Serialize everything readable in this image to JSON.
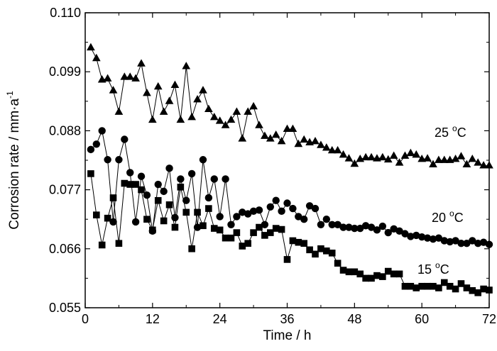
{
  "chart_data": {
    "type": "line",
    "title": "",
    "xlabel": "Time / h",
    "ylabel": "Corrosion rate / mm·a",
    "ylabel_sup": "-1",
    "xlim": [
      0,
      72
    ],
    "ylim": [
      0.055,
      0.11
    ],
    "xticks": [
      0,
      12,
      24,
      36,
      48,
      60,
      72
    ],
    "xtick_labels": [
      "0",
      "12",
      "24",
      "36",
      "48",
      "60",
      "72"
    ],
    "yticks": [
      0.055,
      0.066,
      0.077,
      0.088,
      0.099,
      0.11
    ],
    "ytick_labels": [
      "0.055",
      "0.066",
      "0.077",
      "0.088",
      "0.099",
      "0.110"
    ],
    "grid": false,
    "legend": "none",
    "series": [
      {
        "name": "25 °C",
        "label_main": "25 ",
        "label_sup": "o",
        "label_unit": "C",
        "marker": "triangle",
        "x": [
          1,
          2,
          3,
          4,
          5,
          6,
          7,
          8,
          9,
          10,
          11,
          12,
          13,
          14,
          15,
          16,
          17,
          18,
          19,
          20,
          21,
          22,
          23,
          24,
          25,
          26,
          27,
          28,
          29,
          30,
          31,
          32,
          33,
          34,
          35,
          36,
          37,
          38,
          39,
          40,
          41,
          42,
          43,
          44,
          45,
          46,
          47,
          48,
          49,
          50,
          51,
          52,
          53,
          54,
          55,
          56,
          57,
          58,
          59,
          60,
          61,
          62,
          63,
          64,
          65,
          66,
          67,
          68,
          69,
          70,
          71,
          72
        ],
        "y": [
          0.1035,
          0.1015,
          0.0975,
          0.0977,
          0.0955,
          0.0915,
          0.098,
          0.098,
          0.0977,
          0.1005,
          0.095,
          0.09,
          0.0962,
          0.0915,
          0.0935,
          0.0965,
          0.09,
          0.1,
          0.0905,
          0.0938,
          0.0955,
          0.092,
          0.0905,
          0.0898,
          0.089,
          0.09,
          0.0915,
          0.0865,
          0.0915,
          0.0925,
          0.089,
          0.087,
          0.0865,
          0.0872,
          0.086,
          0.0883,
          0.0883,
          0.0855,
          0.0863,
          0.0858,
          0.086,
          0.0853,
          0.0848,
          0.0843,
          0.0843,
          0.0835,
          0.0828,
          0.0818,
          0.0827,
          0.083,
          0.083,
          0.0828,
          0.083,
          0.0826,
          0.0833,
          0.082,
          0.0833,
          0.0838,
          0.0835,
          0.0827,
          0.0828,
          0.0817,
          0.0825,
          0.0825,
          0.0825,
          0.0827,
          0.0832,
          0.0817,
          0.0827,
          0.082,
          0.0815,
          0.0815
        ]
      },
      {
        "name": "20 °C",
        "label_main": "20 ",
        "label_sup": "o",
        "label_unit": "C",
        "marker": "circle",
        "x": [
          1,
          2,
          3,
          4,
          5,
          6,
          7,
          8,
          9,
          10,
          11,
          12,
          13,
          14,
          15,
          16,
          17,
          18,
          19,
          20,
          21,
          22,
          23,
          24,
          25,
          26,
          27,
          28,
          29,
          30,
          31,
          32,
          33,
          34,
          35,
          36,
          37,
          38,
          39,
          40,
          41,
          42,
          43,
          44,
          45,
          46,
          47,
          48,
          49,
          50,
          51,
          52,
          53,
          54,
          55,
          56,
          57,
          58,
          59,
          60,
          61,
          62,
          63,
          64,
          65,
          66,
          67,
          68,
          69,
          70,
          71,
          72
        ],
        "y": [
          0.0845,
          0.0855,
          0.088,
          0.0826,
          0.071,
          0.0826,
          0.0864,
          0.0802,
          0.071,
          0.0795,
          0.076,
          0.0693,
          0.078,
          0.0767,
          0.081,
          0.0718,
          0.079,
          0.075,
          0.08,
          0.07,
          0.0826,
          0.0755,
          0.079,
          0.072,
          0.079,
          0.0705,
          0.072,
          0.0728,
          0.0725,
          0.073,
          0.0732,
          0.0705,
          0.0738,
          0.075,
          0.073,
          0.0745,
          0.0735,
          0.072,
          0.0715,
          0.074,
          0.0735,
          0.0705,
          0.0715,
          0.0705,
          0.0705,
          0.07,
          0.07,
          0.0698,
          0.0698,
          0.0703,
          0.07,
          0.0695,
          0.0702,
          0.069,
          0.0697,
          0.0693,
          0.0688,
          0.0683,
          0.0685,
          0.0682,
          0.068,
          0.0678,
          0.068,
          0.0675,
          0.0673,
          0.0675,
          0.067,
          0.067,
          0.0675,
          0.067,
          0.0672,
          0.0668
        ]
      },
      {
        "name": "15 °C",
        "label_main": "15 ",
        "label_sup": "o",
        "label_unit": "C",
        "marker": "square",
        "x": [
          1,
          2,
          3,
          4,
          5,
          6,
          7,
          8,
          9,
          10,
          11,
          12,
          13,
          14,
          15,
          16,
          17,
          18,
          19,
          20,
          21,
          22,
          23,
          24,
          25,
          26,
          27,
          28,
          29,
          30,
          31,
          32,
          33,
          34,
          35,
          36,
          37,
          38,
          39,
          40,
          41,
          42,
          43,
          44,
          45,
          46,
          47,
          48,
          49,
          50,
          51,
          52,
          53,
          54,
          55,
          56,
          57,
          58,
          59,
          60,
          61,
          62,
          63,
          64,
          65,
          66,
          67,
          68,
          69,
          70,
          71,
          72
        ],
        "y": [
          0.08,
          0.0723,
          0.0667,
          0.0717,
          0.0755,
          0.067,
          0.0782,
          0.078,
          0.078,
          0.077,
          0.0715,
          0.0695,
          0.075,
          0.0712,
          0.0742,
          0.07,
          0.0775,
          0.0728,
          0.066,
          0.0728,
          0.0703,
          0.0735,
          0.0698,
          0.0695,
          0.068,
          0.068,
          0.069,
          0.0665,
          0.067,
          0.069,
          0.07,
          0.0685,
          0.069,
          0.0698,
          0.0696,
          0.064,
          0.0675,
          0.0672,
          0.067,
          0.0658,
          0.065,
          0.066,
          0.0656,
          0.0652,
          0.0633,
          0.062,
          0.0617,
          0.0617,
          0.0613,
          0.0605,
          0.0605,
          0.061,
          0.0608,
          0.0618,
          0.0613,
          0.0613,
          0.059,
          0.059,
          0.0587,
          0.059,
          0.059,
          0.059,
          0.0587,
          0.0597,
          0.059,
          0.0585,
          0.0595,
          0.0587,
          0.0582,
          0.0578,
          0.0585,
          0.0583
        ]
      }
    ]
  }
}
